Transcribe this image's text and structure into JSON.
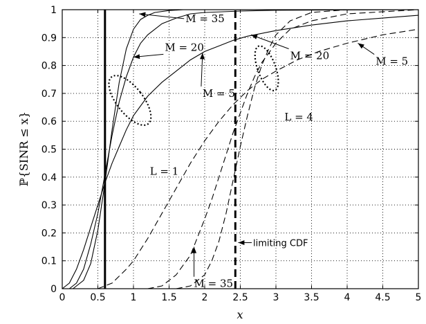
{
  "chart_data": {
    "type": "line",
    "xlabel": "x",
    "ylabel": "ℙ{SINR ≤ x}",
    "xlim": [
      0,
      5
    ],
    "ylim": [
      0,
      1
    ],
    "xticks": [
      "0",
      "0.5",
      "1",
      "1.5",
      "2",
      "2.5",
      "3",
      "3.5",
      "4",
      "4.5",
      "5"
    ],
    "yticks": [
      "0",
      "0.1",
      "0.2",
      "0.3",
      "0.4",
      "0.5",
      "0.6",
      "0.7",
      "0.8",
      "0.9",
      "1"
    ],
    "grid": true,
    "series": [
      {
        "group": "L = 1",
        "style": "solid",
        "name": "M = 5",
        "x": [
          0,
          0.1,
          0.2,
          0.3,
          0.4,
          0.5,
          0.6,
          0.7,
          0.8,
          0.9,
          1.0,
          1.2,
          1.4,
          1.6,
          1.8,
          2.0,
          2.2,
          2.4,
          2.6,
          3.0,
          3.5,
          4.0,
          4.5,
          5.0
        ],
        "y": [
          0,
          0.02,
          0.07,
          0.14,
          0.22,
          0.3,
          0.38,
          0.45,
          0.51,
          0.57,
          0.62,
          0.69,
          0.74,
          0.78,
          0.82,
          0.85,
          0.87,
          0.89,
          0.905,
          0.925,
          0.945,
          0.96,
          0.97,
          0.98
        ]
      },
      {
        "group": "L = 1",
        "style": "solid",
        "name": "M = 20",
        "x": [
          0,
          0.1,
          0.2,
          0.3,
          0.4,
          0.5,
          0.6,
          0.7,
          0.8,
          0.9,
          1.0,
          1.1,
          1.2,
          1.4,
          1.6,
          1.8,
          2.0,
          2.5,
          3.0,
          5.0
        ],
        "y": [
          0,
          0.0,
          0.02,
          0.07,
          0.16,
          0.27,
          0.41,
          0.55,
          0.67,
          0.76,
          0.83,
          0.88,
          0.91,
          0.95,
          0.97,
          0.985,
          0.99,
          0.995,
          0.998,
          1.0
        ]
      },
      {
        "group": "L = 1",
        "style": "solid",
        "name": "M = 35",
        "x": [
          0,
          0.15,
          0.3,
          0.4,
          0.5,
          0.6,
          0.7,
          0.8,
          0.9,
          1.0,
          1.1,
          1.2,
          1.3,
          1.5,
          1.7,
          2.0,
          5.0
        ],
        "y": [
          0,
          0.0,
          0.03,
          0.09,
          0.21,
          0.38,
          0.57,
          0.74,
          0.86,
          0.93,
          0.965,
          0.98,
          0.99,
          0.997,
          1.0,
          1.0,
          1.0
        ]
      },
      {
        "group": "L = 4",
        "style": "dashed",
        "name": "M = 5",
        "x": [
          0.5,
          0.7,
          0.9,
          1.0,
          1.2,
          1.4,
          1.6,
          1.8,
          2.0,
          2.2,
          2.4,
          2.6,
          2.8,
          3.0,
          3.3,
          3.6,
          4.0,
          4.5,
          5.0
        ],
        "y": [
          0.0,
          0.02,
          0.07,
          0.1,
          0.18,
          0.27,
          0.36,
          0.45,
          0.53,
          0.6,
          0.66,
          0.71,
          0.75,
          0.78,
          0.82,
          0.85,
          0.88,
          0.91,
          0.93
        ]
      },
      {
        "group": "L = 4",
        "style": "dashed",
        "name": "M = 20",
        "x": [
          1.2,
          1.4,
          1.6,
          1.8,
          2.0,
          2.1,
          2.2,
          2.3,
          2.4,
          2.5,
          2.6,
          2.7,
          2.8,
          3.0,
          3.2,
          3.5,
          4.0,
          5.0
        ],
        "y": [
          0.0,
          0.01,
          0.05,
          0.12,
          0.25,
          0.32,
          0.4,
          0.48,
          0.56,
          0.63,
          0.7,
          0.76,
          0.81,
          0.88,
          0.93,
          0.96,
          0.985,
          1.0
        ]
      },
      {
        "group": "L = 4",
        "style": "dashed",
        "name": "M = 35",
        "x": [
          1.6,
          1.8,
          2.0,
          2.1,
          2.2,
          2.3,
          2.4,
          2.5,
          2.6,
          2.7,
          2.8,
          2.9,
          3.0,
          3.2,
          3.5,
          4.0,
          5.0
        ],
        "y": [
          0.0,
          0.01,
          0.05,
          0.1,
          0.17,
          0.27,
          0.39,
          0.51,
          0.62,
          0.72,
          0.8,
          0.86,
          0.91,
          0.96,
          0.99,
          1.0,
          1.0
        ]
      },
      {
        "style": "vertical-solid",
        "name": "",
        "x": [
          0.6,
          0.6
        ],
        "y": [
          0,
          1
        ]
      },
      {
        "style": "vertical-dashed",
        "name": "limiting CDF",
        "x": [
          2.43,
          2.43
        ],
        "y": [
          0,
          1
        ]
      }
    ],
    "annotations": [
      {
        "text": "M = 35",
        "x": 1.73,
        "y": 0.968,
        "arrow_to": [
          1.08,
          0.985
        ]
      },
      {
        "text": "M = 20",
        "x": 1.44,
        "y": 0.865,
        "arrow_to": [
          1.0,
          0.83
        ]
      },
      {
        "text": "M = 5",
        "x": 1.97,
        "y": 0.7,
        "arrow_to": [
          1.97,
          0.845
        ]
      },
      {
        "text": "L = 1",
        "x": 1.23,
        "y": 0.42
      },
      {
        "text": "M = 20",
        "x": 3.2,
        "y": 0.835,
        "arrow_to": [
          2.65,
          0.91
        ]
      },
      {
        "text": "M = 5",
        "x": 4.4,
        "y": 0.815,
        "arrow_to": [
          4.15,
          0.88
        ]
      },
      {
        "text": "L = 4",
        "x": 3.12,
        "y": 0.615
      },
      {
        "text": "M = 35",
        "x": 1.85,
        "y": 0.018,
        "arrow_to": [
          1.85,
          0.15
        ]
      },
      {
        "text": "limiting CDF",
        "x": 2.68,
        "y": 0.165,
        "arrow_to": [
          2.47,
          0.165
        ]
      }
    ]
  }
}
